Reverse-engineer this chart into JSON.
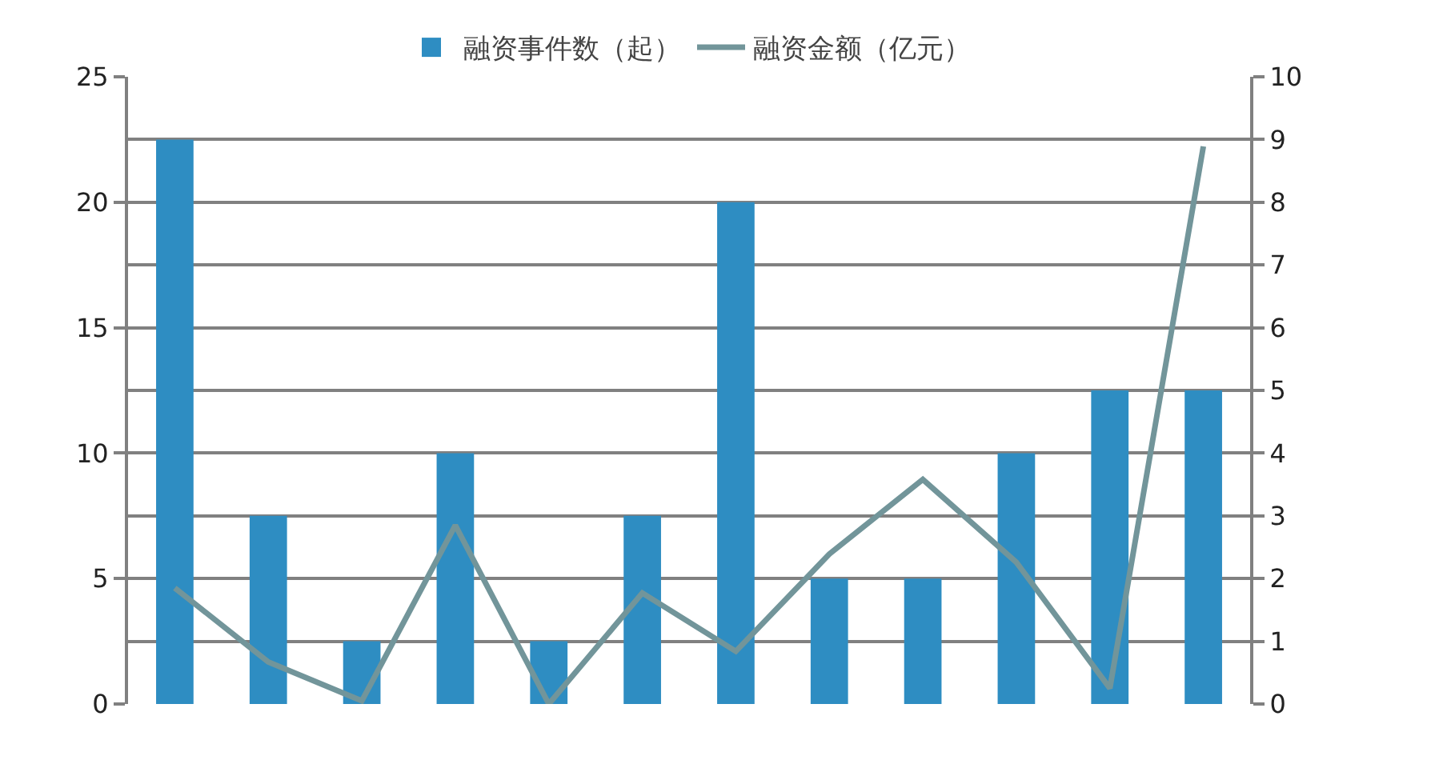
{
  "chart_data": {
    "type": "bar",
    "categories": [
      null,
      null,
      null,
      null,
      null,
      null,
      null,
      null,
      null,
      null,
      null,
      null
    ],
    "series": [
      {
        "name": "融资事件数（起）",
        "color": "#2e8dc2",
        "values": [
          22.5,
          7.5,
          2.5,
          10,
          2.5,
          7.5,
          20,
          5,
          5,
          10,
          12.5,
          12.5
        ]
      },
      {
        "name": "融资金额（亿元）",
        "type": "line",
        "axis": "y2",
        "color": "#72959a",
        "values": [
          1.85,
          0.67,
          0.05,
          2.85,
          0,
          1.77,
          0.84,
          2.39,
          3.58,
          2.26,
          0.25,
          8.89
        ]
      }
    ],
    "ylim": [
      0,
      25
    ],
    "yticks": [
      0,
      5,
      10,
      15,
      20,
      25
    ],
    "y2lim": [
      0,
      10
    ],
    "y2ticks": [
      0,
      1,
      2,
      3,
      4,
      5,
      6,
      7,
      8,
      9,
      10
    ],
    "grid": "y2",
    "legend": "top",
    "marker": "none",
    "line_style": "solid"
  }
}
